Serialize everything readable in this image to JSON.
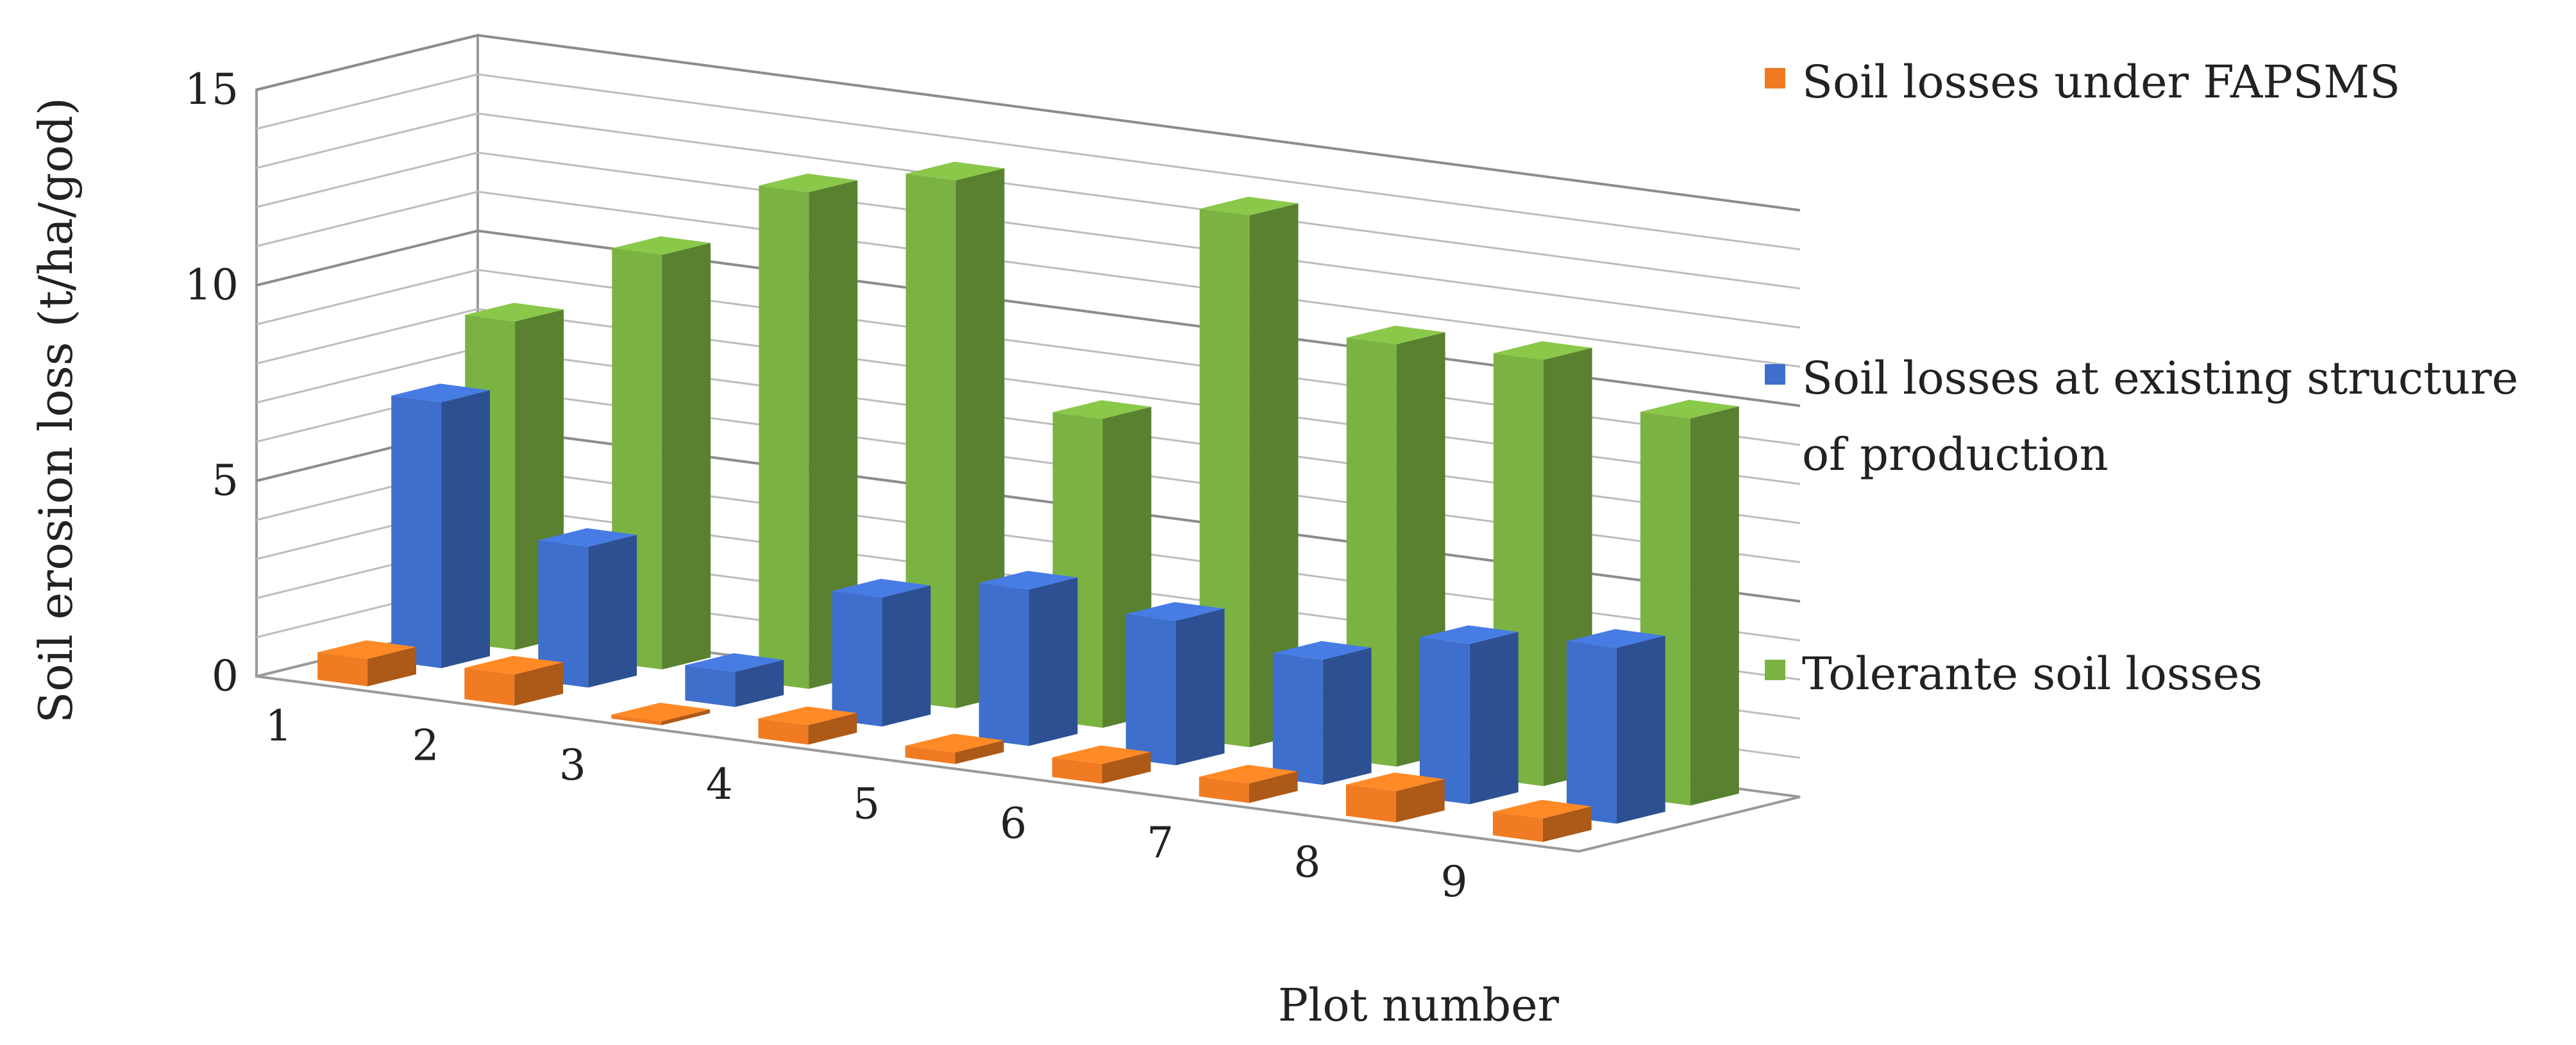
{
  "chart_data": {
    "type": "bar",
    "title": "",
    "xlabel": "Plot number",
    "ylabel": "Soil erosion loss (t/ha/god)",
    "ylim": [
      0,
      15
    ],
    "yticks": [
      "0",
      "5",
      "10",
      "15"
    ],
    "categories": [
      "1",
      "2",
      "3",
      "4",
      "5",
      "6",
      "7",
      "8",
      "9"
    ],
    "grid": true,
    "legend_position": "right",
    "series": [
      {
        "name": "Soil losses under FAPSMS",
        "color": "#F07B22",
        "values": [
          0.7,
          0.8,
          0.1,
          0.5,
          0.3,
          0.5,
          0.5,
          0.8,
          0.6
        ]
      },
      {
        "name": "Soil losses at existing structure of production",
        "color": "#3F6FCC",
        "values": [
          6.8,
          3.6,
          0.9,
          3.3,
          4.0,
          3.7,
          3.2,
          4.1,
          4.5
        ]
      },
      {
        "name": "Tolerante soil losses",
        "color": "#7BB342",
        "values": [
          8.4,
          10.6,
          12.7,
          13.5,
          7.9,
          13.6,
          10.8,
          10.9,
          9.9
        ]
      }
    ]
  }
}
